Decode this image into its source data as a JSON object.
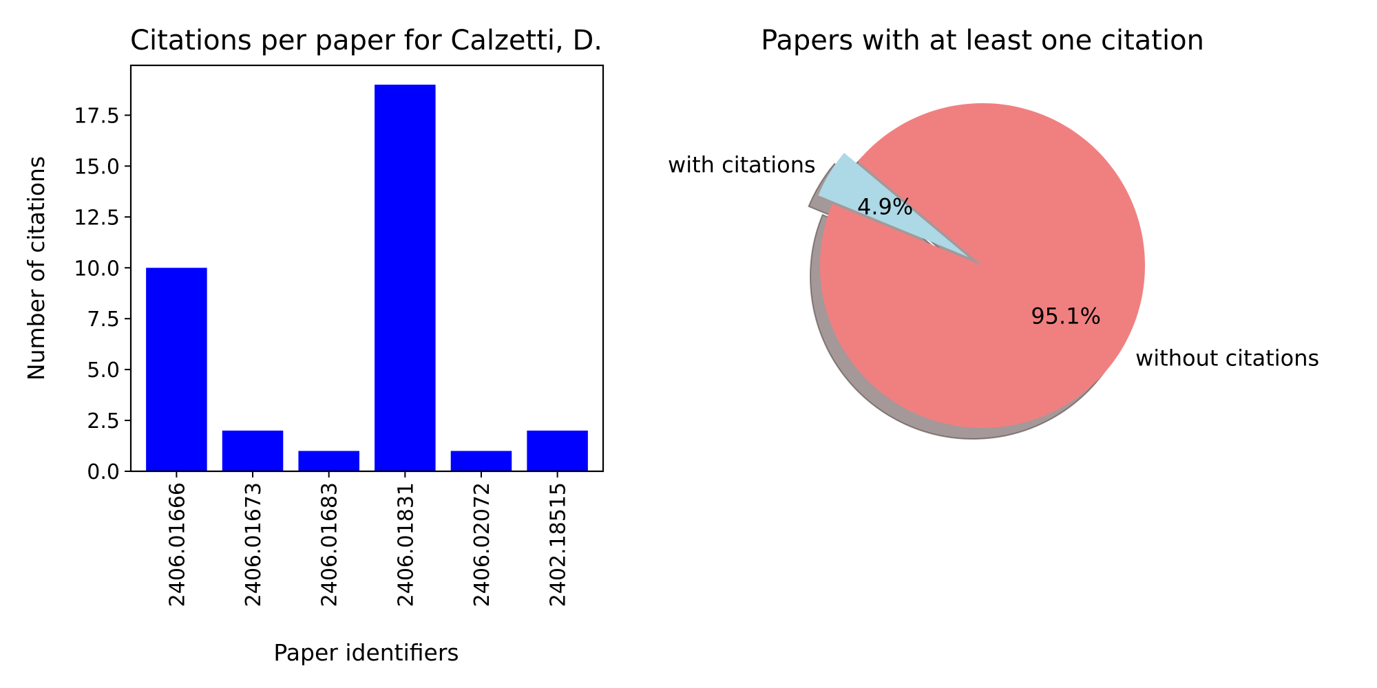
{
  "chart_data": [
    {
      "type": "bar",
      "title": "Citations per paper for Calzetti, D.",
      "xlabel": "Paper identifiers",
      "ylabel": "Number of citations",
      "categories": [
        "2406.01666",
        "2406.01673",
        "2406.01683",
        "2406.01831",
        "2406.02072",
        "2402.18515"
      ],
      "values": [
        10,
        2,
        1,
        19,
        1,
        2
      ],
      "ylim": [
        0,
        19.95
      ],
      "yticks": [
        "0.0",
        "2.5",
        "5.0",
        "7.5",
        "10.0",
        "12.5",
        "15.0",
        "17.5"
      ],
      "bar_color": "#0000ff",
      "grid": false
    },
    {
      "type": "pie",
      "title": "Papers with at least one citation",
      "labels": [
        "with citations",
        "without citations"
      ],
      "values": [
        4.9,
        95.1
      ],
      "pct_labels": [
        "4.9%",
        "95.1%"
      ],
      "colors": [
        "#add8e6",
        "#f08080"
      ],
      "exploded": "with citations",
      "shadow": true
    }
  ]
}
